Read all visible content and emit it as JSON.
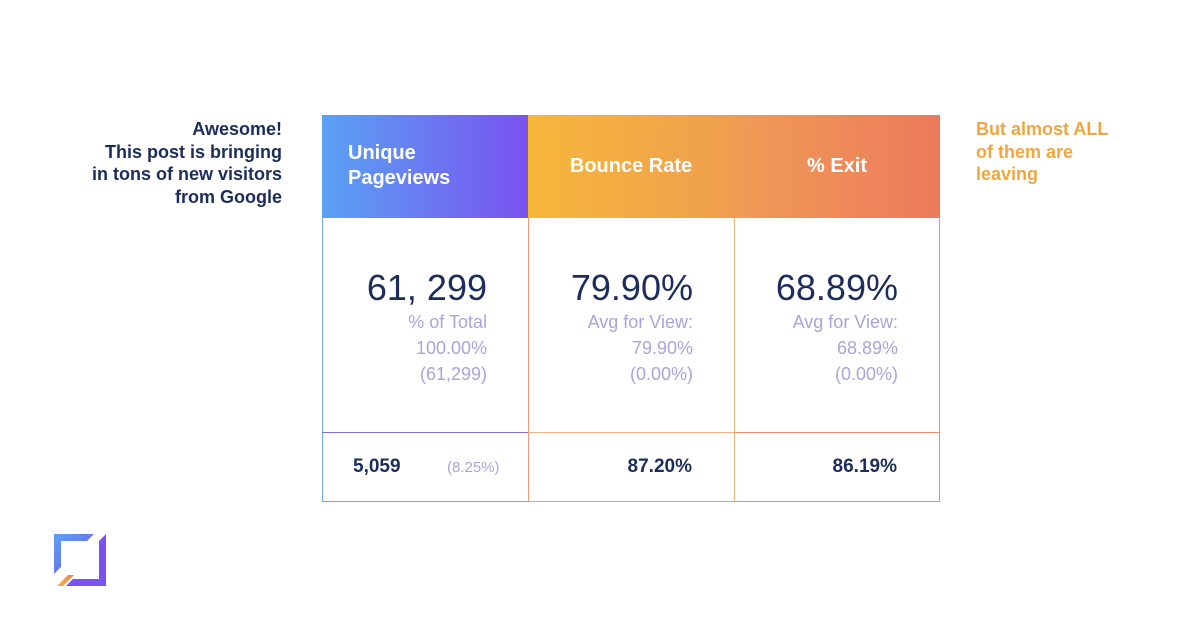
{
  "note_left": {
    "lines": [
      "Awesome!",
      "This post is bringing",
      "in tons of new visitors",
      "from Google"
    ]
  },
  "note_right": {
    "lines": [
      "But almost ALL",
      "of them are",
      "leaving"
    ]
  },
  "table": {
    "columns": [
      {
        "header_lines": [
          "Unique",
          "Pageviews"
        ],
        "value": "61, 299",
        "sub_lines": [
          "% of Total",
          "100.00%",
          "(61,299)"
        ],
        "footer_value": "5,059",
        "footer_pct": "(8.25%)"
      },
      {
        "header": "Bounce Rate",
        "value": "79.90%",
        "sub_lines": [
          "Avg for View:",
          "79.90%",
          "(0.00%)"
        ],
        "footer_value": "87.20%"
      },
      {
        "header": "% Exit",
        "value": "68.89%",
        "sub_lines": [
          "Avg for View:",
          "68.89%",
          "(0.00%)"
        ],
        "footer_value": "86.19%"
      }
    ]
  },
  "colors": {
    "navy_text": "#1c2c5b",
    "orange_text": "#f0a63c",
    "muted_purple": "#a9a4dc",
    "blue_start": "#5aa2f4",
    "purple_end": "#7a52ef",
    "yellow": "#f6b73b",
    "coral": "#ec7a5c"
  },
  "logo": {
    "icon": "brand-logo-icon"
  }
}
